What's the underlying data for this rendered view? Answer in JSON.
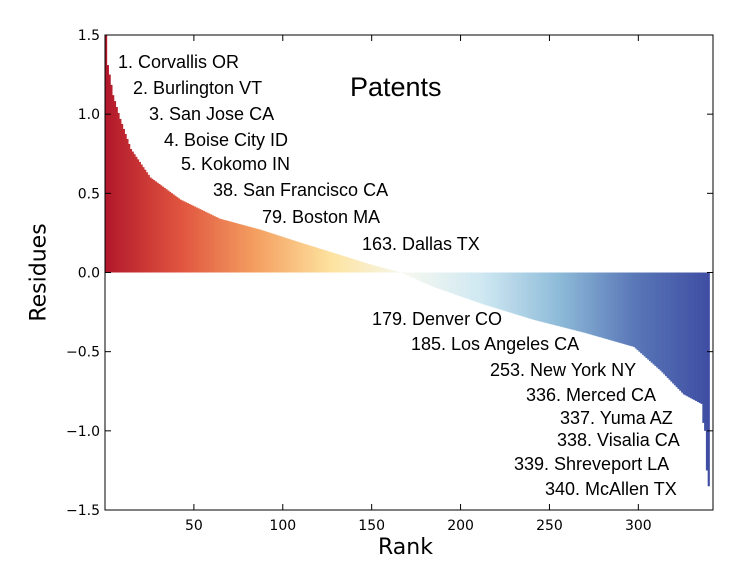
{
  "chart_data": {
    "type": "bar",
    "title": "Patents",
    "xlabel": "Rank",
    "ylabel": "Residues",
    "xlim": [
      0,
      342
    ],
    "ylim": [
      -1.5,
      1.5
    ],
    "n_bars": 340,
    "xticks": [
      50,
      100,
      150,
      200,
      250,
      300
    ],
    "xtick_labels": [
      "50",
      "100",
      "150",
      "200",
      "250",
      "300"
    ],
    "yticks": [
      1.5,
      1.0,
      0.5,
      0.0,
      -0.5,
      -1.0,
      -1.5
    ],
    "ytick_labels": [
      "1.5",
      "1.0",
      "0.5",
      "0.0",
      "−0.5",
      "−1.0",
      "−1.5"
    ],
    "colormap": [
      "#b2182b",
      "#e0553f",
      "#f4a061",
      "#fde3a0",
      "#f5f8f0",
      "#cfe8f2",
      "#8fbcd9",
      "#5a78b8",
      "#3f4ea3"
    ],
    "residue_curve": [
      [
        1,
        1.5
      ],
      [
        2,
        1.31
      ],
      [
        3,
        1.25
      ],
      [
        5,
        1.12
      ],
      [
        9,
        0.97
      ],
      [
        15,
        0.78
      ],
      [
        26,
        0.6
      ],
      [
        43,
        0.46
      ],
      [
        65,
        0.34
      ],
      [
        88,
        0.27
      ],
      [
        110,
        0.19
      ],
      [
        133,
        0.11
      ],
      [
        150,
        0.05
      ],
      [
        167,
        0.0
      ],
      [
        185,
        -0.09
      ],
      [
        213,
        -0.2
      ],
      [
        242,
        -0.3
      ],
      [
        270,
        -0.38
      ],
      [
        298,
        -0.47
      ],
      [
        313,
        -0.62
      ],
      [
        326,
        -0.77
      ],
      [
        336,
        -0.83
      ],
      [
        337,
        -0.95
      ],
      [
        338,
        -1.0
      ],
      [
        339,
        -1.25
      ],
      [
        340,
        -1.35
      ]
    ],
    "annotations": [
      {
        "rank": 1,
        "text": "1. Corvallis OR"
      },
      {
        "rank": 2,
        "text": "2. Burlington VT"
      },
      {
        "rank": 3,
        "text": "3. San Jose CA"
      },
      {
        "rank": 4,
        "text": "4. Boise City ID"
      },
      {
        "rank": 5,
        "text": "5. Kokomo IN"
      },
      {
        "rank": 38,
        "text": "38. San Francisco CA"
      },
      {
        "rank": 79,
        "text": "79. Boston MA"
      },
      {
        "rank": 163,
        "text": "163. Dallas TX"
      },
      {
        "rank": 179,
        "text": "179.  Denver CO"
      },
      {
        "rank": 185,
        "text": "185.  Los Angeles CA"
      },
      {
        "rank": 253,
        "text": "253.  New York NY"
      },
      {
        "rank": 336,
        "text": "336.  Merced CA"
      },
      {
        "rank": 337,
        "text": "337.  Yuma AZ"
      },
      {
        "rank": 338,
        "text": "338.  Visalia CA"
      },
      {
        "rank": 339,
        "text": "339.  Shreveport LA"
      },
      {
        "rank": 340,
        "text": "340.  McAllen TX"
      }
    ]
  }
}
